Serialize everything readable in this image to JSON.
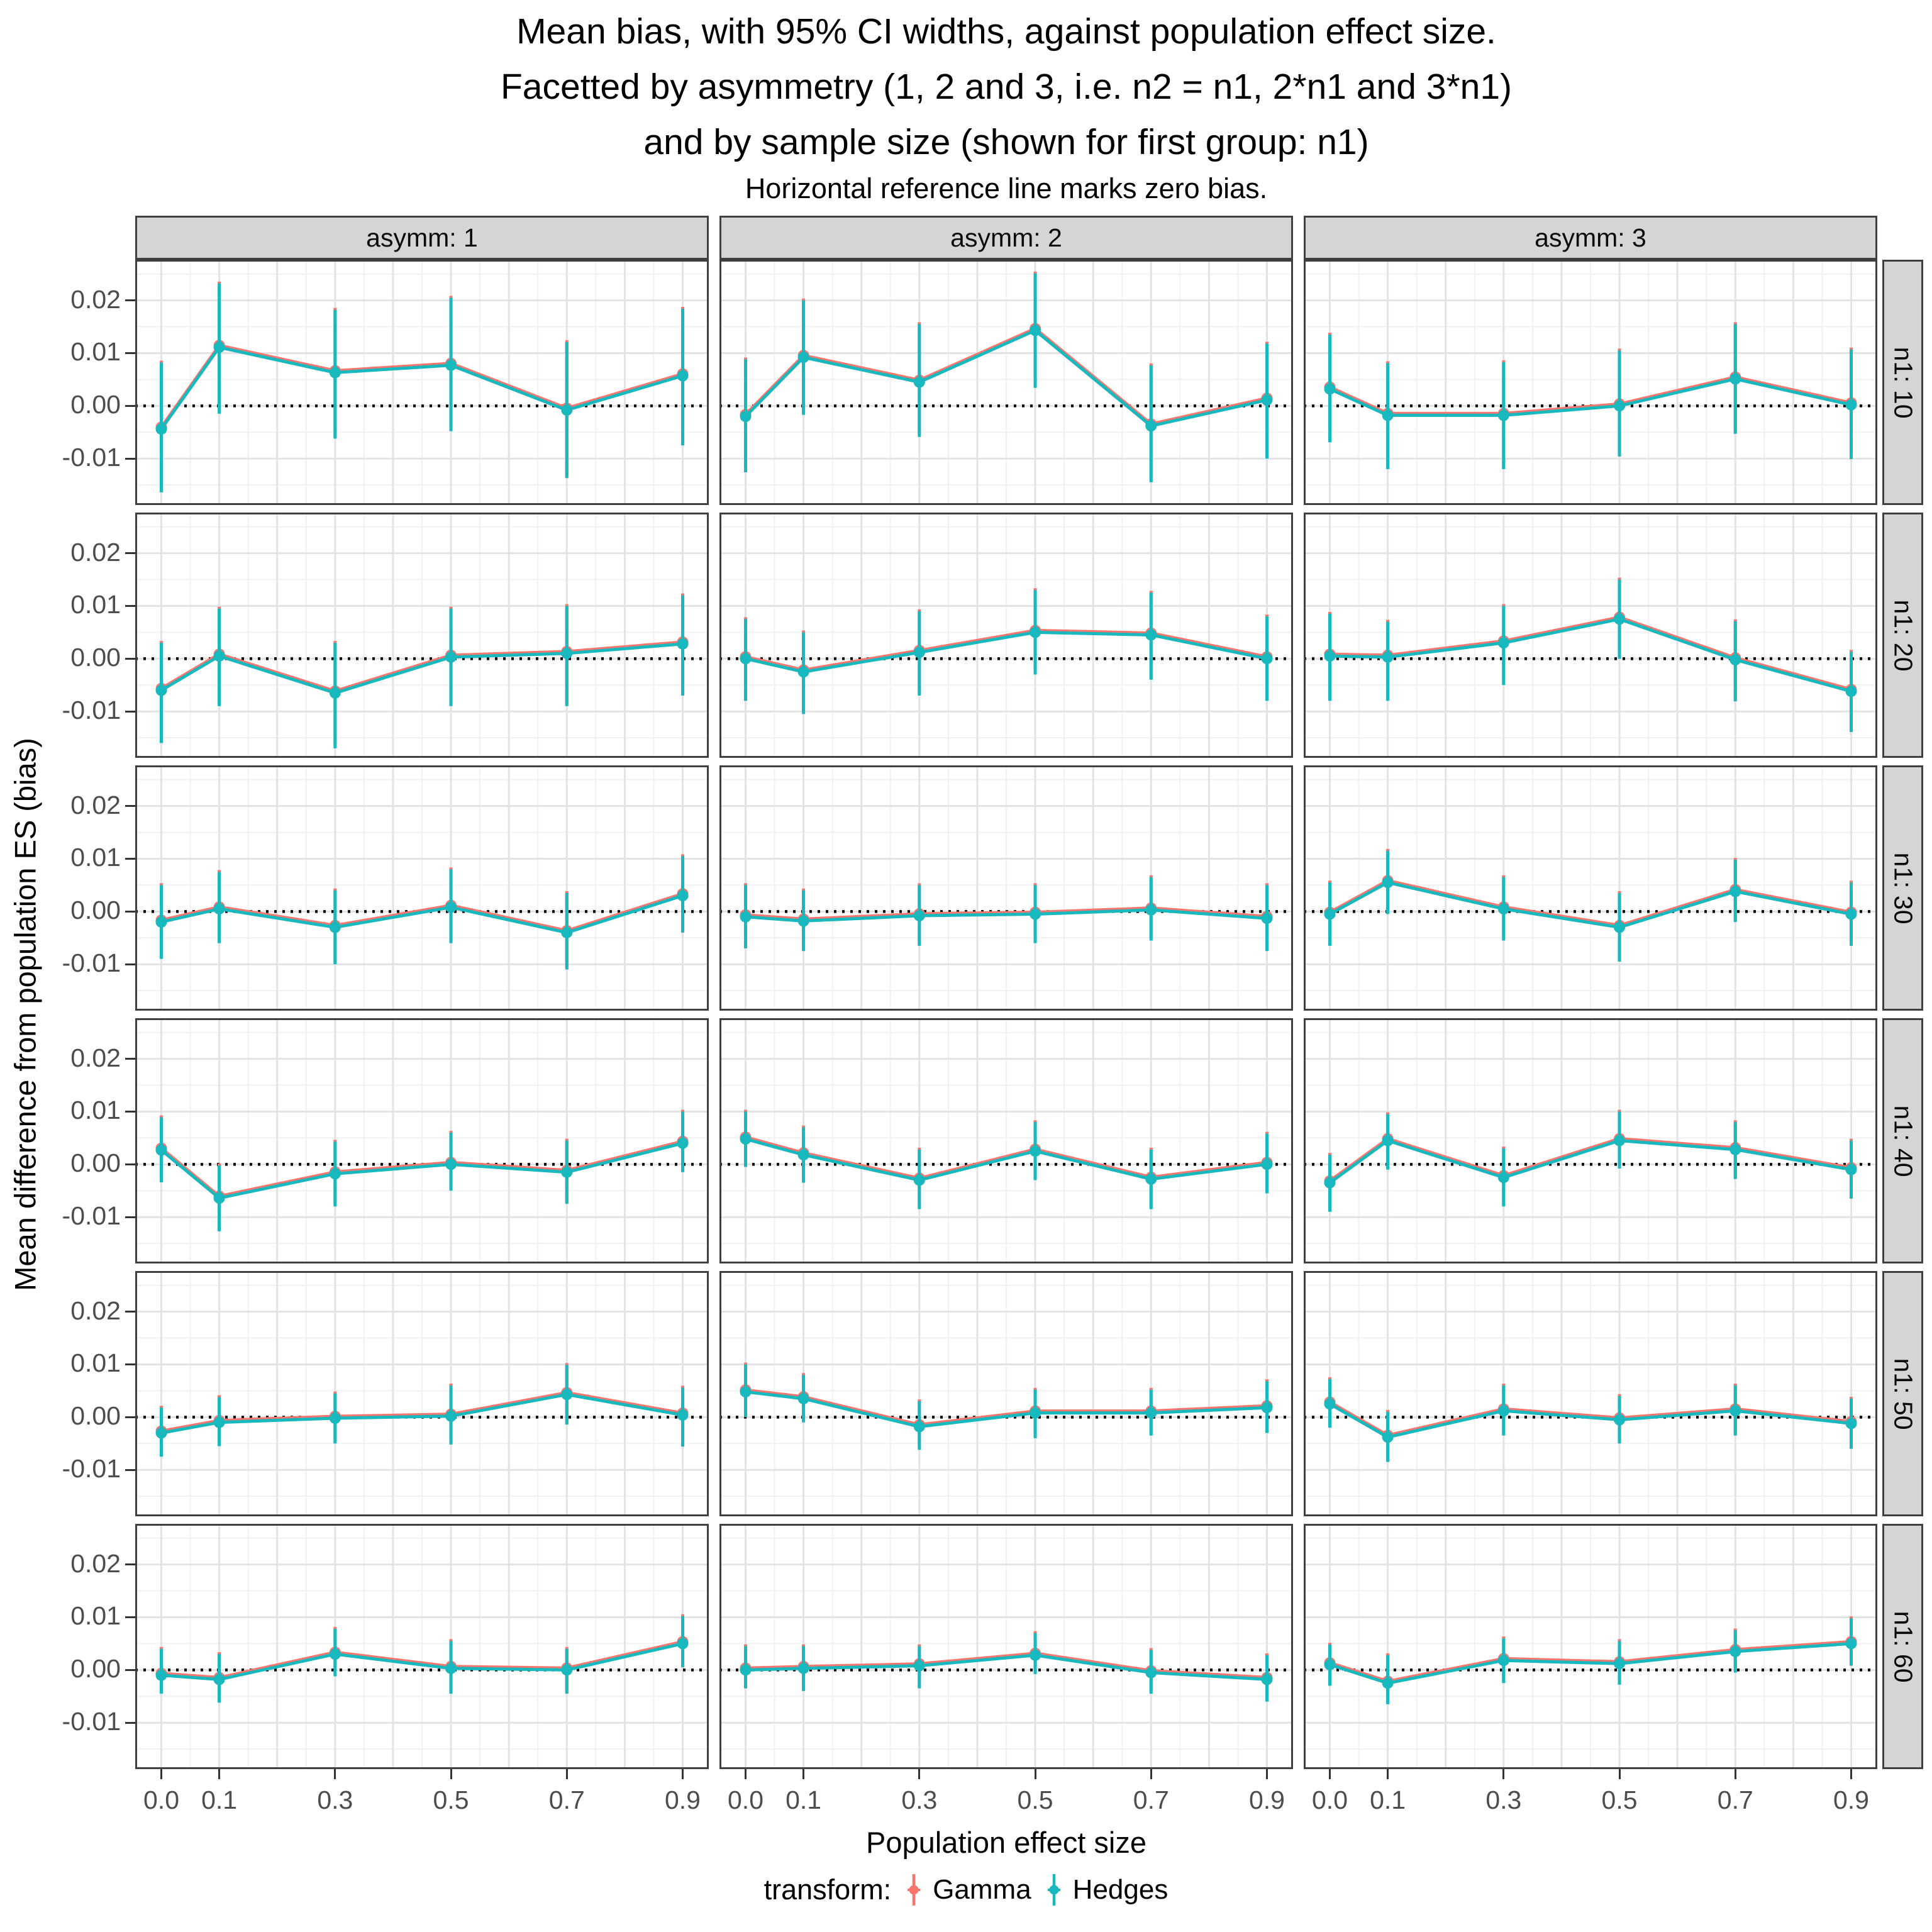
{
  "title": {
    "line1": "Mean bias, with 95% CI widths, against population effect size.",
    "line2": "Facetted by asymmetry (1, 2 and 3, i.e. n2 = n1, 2*n1 and 3*n1)",
    "line3": "and by sample size (shown for first group: n1)",
    "subtitle": "Horizontal reference line marks zero bias."
  },
  "axes": {
    "x_title": "Population effect size",
    "y_title": "Mean difference from population ES (bias)",
    "x_tick_labels": [
      "0.0",
      "0.1",
      "0.3",
      "0.5",
      "0.7",
      "0.9"
    ],
    "x_tick_values": [
      0.0,
      0.1,
      0.3,
      0.5,
      0.7,
      0.9
    ],
    "y_tick_labels": [
      "0.02",
      "0.01",
      "0.00",
      "-0.01"
    ],
    "y_tick_values": [
      0.02,
      0.01,
      0.0,
      -0.01
    ],
    "x_range": [
      -0.045,
      0.945
    ],
    "y_range": [
      -0.0188,
      0.0277
    ]
  },
  "facets": {
    "col_labels": [
      "asymm: 1",
      "asymm: 2",
      "asymm: 3"
    ],
    "row_labels": [
      "n1: 10",
      "n1: 20",
      "n1: 30",
      "n1: 40",
      "n1: 50",
      "n1: 60"
    ]
  },
  "legend": {
    "title": "transform:",
    "items": [
      {
        "label": "Gamma",
        "color": "#F8766D"
      },
      {
        "label": "Hedges",
        "color": "#17B8BE"
      }
    ]
  },
  "reference_line": {
    "y": 0,
    "style": "dotted",
    "color": "#000000"
  },
  "style_colors": {
    "grid_major": "#e3e3e3",
    "grid_minor": "#f1f1f1",
    "panel_border": "#404040",
    "strip_bg": "#d5d5d5",
    "tick_text": "#4d4d4d"
  },
  "chart_data": {
    "type": "line",
    "x": [
      0.0,
      0.1,
      0.3,
      0.5,
      0.7,
      0.9
    ],
    "grid": {
      "vertical_major_step": 0.1,
      "vertical_minor_step": 0.05,
      "horizontal_major_step": 0.01,
      "horizontal_minor_step": 0.005
    },
    "note": "Each panel: Hedges (teal) pointrange with 95% CI; Gamma (salmon) series overlaps Hedges almost exactly and is hidden behind it (thin salmon fringe visible along line edges).",
    "gamma_overlaps_hedges": true,
    "panels": [
      {
        "col": "asymm: 1",
        "row": "n1: 10",
        "y": [
          -0.0044,
          0.0111,
          0.0063,
          0.0077,
          -0.0008,
          0.0057
        ],
        "lo": [
          -0.0164,
          -0.0015,
          -0.0062,
          -0.0048,
          -0.0137,
          -0.0075
        ],
        "hi": [
          0.0082,
          0.0232,
          0.0182,
          0.0205,
          0.0121,
          0.0184
        ]
      },
      {
        "col": "asymm: 2",
        "row": "n1: 10",
        "y": [
          -0.002,
          0.0092,
          0.0045,
          0.0143,
          -0.0038,
          0.0011
        ],
        "lo": [
          -0.0126,
          -0.0017,
          -0.0059,
          0.0034,
          -0.0145,
          -0.01
        ],
        "hi": [
          0.0088,
          0.02,
          0.0155,
          0.0251,
          0.0077,
          0.0118
        ]
      },
      {
        "col": "asymm: 3",
        "row": "n1: 10",
        "y": [
          0.0032,
          -0.0018,
          -0.0018,
          0.0,
          0.0051,
          0.0002
        ],
        "lo": [
          -0.0069,
          -0.012,
          -0.012,
          -0.0096,
          -0.0053,
          -0.0101
        ],
        "hi": [
          0.0135,
          0.0081,
          0.0083,
          0.0105,
          0.0155,
          0.0107
        ]
      },
      {
        "col": "asymm: 1",
        "row": "n1: 20",
        "y": [
          -0.006,
          0.0005,
          -0.0065,
          0.0003,
          0.001,
          0.0028
        ],
        "lo": [
          -0.016,
          -0.009,
          -0.017,
          -0.009,
          -0.009,
          -0.007
        ],
        "hi": [
          0.003,
          0.0095,
          0.003,
          0.0095,
          0.01,
          0.012
        ]
      },
      {
        "col": "asymm: 2",
        "row": "n1: 20",
        "y": [
          0.0,
          -0.0025,
          0.0012,
          0.005,
          0.0045,
          0.0
        ],
        "lo": [
          -0.008,
          -0.0105,
          -0.007,
          -0.003,
          -0.004,
          -0.008
        ],
        "hi": [
          0.0075,
          0.005,
          0.009,
          0.013,
          0.0125,
          0.008
        ]
      },
      {
        "col": "asymm: 3",
        "row": "n1: 20",
        "y": [
          0.0005,
          0.0003,
          0.003,
          0.0075,
          -0.0002,
          -0.0062
        ],
        "lo": [
          -0.008,
          -0.008,
          -0.005,
          0.0,
          -0.0081,
          -0.0139
        ],
        "hi": [
          0.0085,
          0.007,
          0.01,
          0.015,
          0.0071,
          0.0013
        ]
      },
      {
        "col": "asymm: 1",
        "row": "n1: 30",
        "y": [
          -0.002,
          0.0005,
          -0.003,
          0.0008,
          -0.004,
          0.003
        ],
        "lo": [
          -0.009,
          -0.006,
          -0.01,
          -0.006,
          -0.011,
          -0.004
        ],
        "hi": [
          0.005,
          0.0075,
          0.004,
          0.008,
          0.0035,
          0.0105
        ]
      },
      {
        "col": "asymm: 2",
        "row": "n1: 30",
        "y": [
          -0.001,
          -0.0018,
          -0.0008,
          -0.0005,
          0.0003,
          -0.0013
        ],
        "lo": [
          -0.007,
          -0.0075,
          -0.0065,
          -0.006,
          -0.0055,
          -0.0075
        ],
        "hi": [
          0.005,
          0.004,
          0.005,
          0.005,
          0.0065,
          0.005
        ]
      },
      {
        "col": "asymm: 3",
        "row": "n1: 30",
        "y": [
          -0.0005,
          0.0055,
          0.0005,
          -0.003,
          0.0038,
          -0.0005
        ],
        "lo": [
          -0.0065,
          -0.0005,
          -0.0055,
          -0.0095,
          -0.002,
          -0.0065
        ],
        "hi": [
          0.0055,
          0.0115,
          0.0065,
          0.0035,
          0.0098,
          0.0055
        ]
      },
      {
        "col": "asymm: 1",
        "row": "n1: 40",
        "y": [
          0.0027,
          -0.0064,
          -0.0018,
          0.0,
          -0.0015,
          0.004
        ],
        "lo": [
          -0.0034,
          -0.0127,
          -0.008,
          -0.005,
          -0.0075,
          -0.0015
        ],
        "hi": [
          0.0089,
          -0.0002,
          0.0043,
          0.006,
          0.0045,
          0.01
        ]
      },
      {
        "col": "asymm: 2",
        "row": "n1: 40",
        "y": [
          0.0048,
          0.0018,
          -0.003,
          0.0025,
          -0.0028,
          0.0
        ],
        "lo": [
          -0.0005,
          -0.0035,
          -0.0085,
          -0.003,
          -0.0085,
          -0.0055
        ],
        "hi": [
          0.01,
          0.007,
          0.0028,
          0.008,
          0.0028,
          0.0058
        ]
      },
      {
        "col": "asymm: 3",
        "row": "n1: 40",
        "y": [
          -0.0035,
          0.0045,
          -0.0025,
          0.0045,
          0.0028,
          -0.001
        ],
        "lo": [
          -0.009,
          -0.001,
          -0.008,
          -0.0008,
          -0.0028,
          -0.0065
        ],
        "hi": [
          0.0018,
          0.0095,
          0.003,
          0.01,
          0.008,
          0.0045
        ]
      },
      {
        "col": "asymm: 1",
        "row": "n1: 50",
        "y": [
          -0.003,
          -0.001,
          -0.0002,
          0.0002,
          0.0043,
          0.0004
        ],
        "lo": [
          -0.0075,
          -0.0055,
          -0.005,
          -0.0052,
          -0.0014,
          -0.0056
        ],
        "hi": [
          0.0018,
          0.0038,
          0.0045,
          0.006,
          0.0099,
          0.0056
        ]
      },
      {
        "col": "asymm: 2",
        "row": "n1: 50",
        "y": [
          0.0048,
          0.0035,
          -0.0018,
          0.0008,
          0.0008,
          0.0018
        ],
        "lo": [
          0.0,
          -0.001,
          -0.0062,
          -0.004,
          -0.0035,
          -0.003
        ],
        "hi": [
          0.01,
          0.008,
          0.003,
          0.0052,
          0.0052,
          0.0068
        ]
      },
      {
        "col": "asymm: 3",
        "row": "n1: 50",
        "y": [
          0.0025,
          -0.0038,
          0.0012,
          -0.0005,
          0.0012,
          -0.0012
        ],
        "lo": [
          -0.002,
          -0.0085,
          -0.0035,
          -0.005,
          -0.0035,
          -0.006
        ],
        "hi": [
          0.0072,
          0.001,
          0.006,
          0.004,
          0.006,
          0.0035
        ]
      },
      {
        "col": "asymm: 1",
        "row": "n1: 60",
        "y": [
          -0.001,
          -0.0018,
          0.003,
          0.0003,
          0.0,
          0.005
        ],
        "lo": [
          -0.0045,
          -0.0062,
          -0.0012,
          -0.0045,
          -0.0045,
          0.0005
        ],
        "hi": [
          0.004,
          0.003,
          0.0078,
          0.0055,
          0.004,
          0.0102
        ]
      },
      {
        "col": "asymm: 2",
        "row": "n1: 60",
        "y": [
          0.0,
          0.0003,
          0.0008,
          0.0028,
          -0.0005,
          -0.0018
        ],
        "lo": [
          -0.0035,
          -0.004,
          -0.0035,
          -0.0008,
          -0.0045,
          -0.006
        ],
        "hi": [
          0.0045,
          0.0045,
          0.0045,
          0.007,
          0.0038,
          0.0028
        ]
      },
      {
        "col": "asymm: 3",
        "row": "n1: 60",
        "y": [
          0.001,
          -0.0025,
          0.0018,
          0.0012,
          0.0035,
          0.005
        ],
        "lo": [
          -0.003,
          -0.0065,
          -0.0025,
          -0.0028,
          -0.0005,
          0.0008
        ],
        "hi": [
          0.0048,
          0.0028,
          0.006,
          0.0055,
          0.0075,
          0.0098
        ]
      }
    ]
  }
}
